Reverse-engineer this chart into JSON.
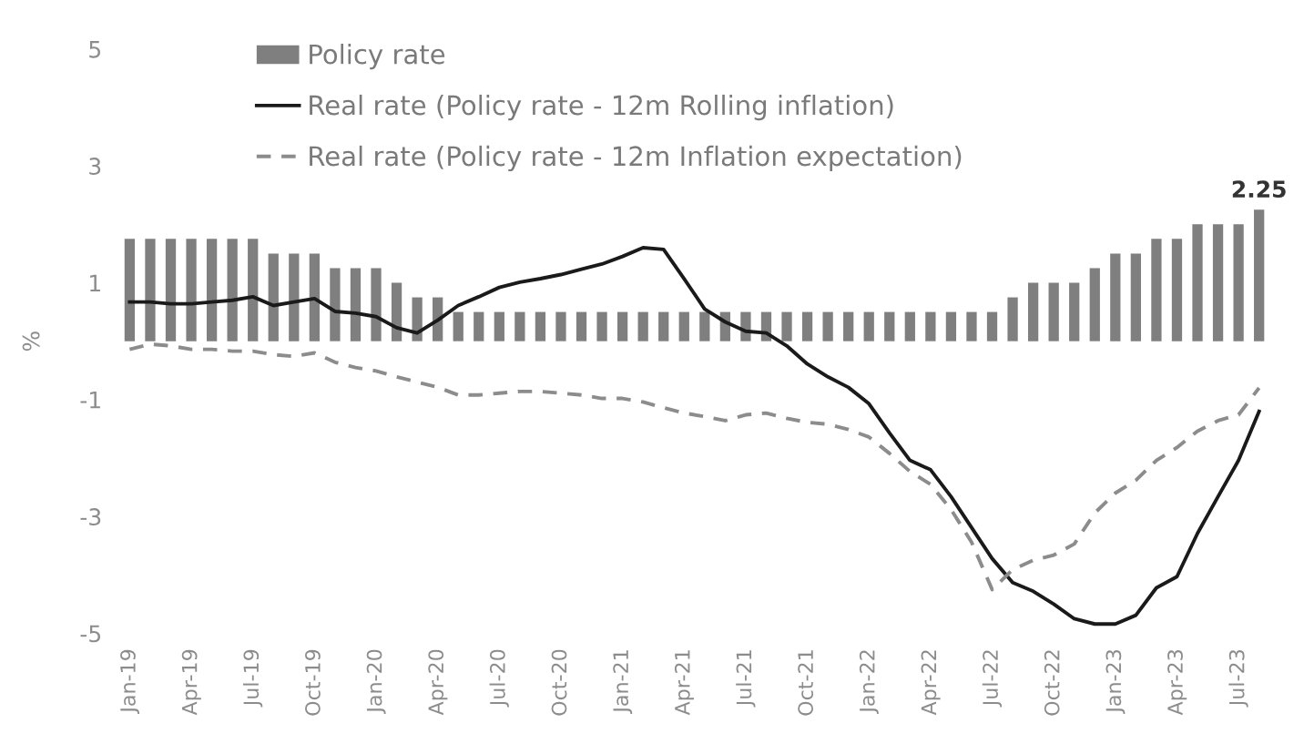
{
  "chart_data": {
    "type": "bar",
    "ylabel": "%",
    "categories": [
      "Jan-19",
      null,
      null,
      "Apr-19",
      null,
      null,
      "Jul-19",
      null,
      null,
      "Oct-19",
      null,
      null,
      "Jan-20",
      null,
      null,
      "Apr-20",
      null,
      null,
      "Jul-20",
      null,
      null,
      "Oct-20",
      null,
      null,
      "Jan-21",
      null,
      null,
      "Apr-21",
      null,
      null,
      "Jul-21",
      null,
      null,
      "Oct-21",
      null,
      null,
      "Jan-22",
      null,
      null,
      "Apr-22",
      null,
      null,
      "Jul-22",
      null,
      null,
      "Oct-22",
      null,
      null,
      "Jan-23",
      null,
      null,
      "Apr-23",
      null,
      null,
      "Jul-23",
      null
    ],
    "series": [
      {
        "name": "Policy rate",
        "color": "#7f7f7f",
        "values": [
          1.75,
          1.75,
          1.75,
          1.75,
          1.75,
          1.75,
          1.75,
          1.5,
          1.5,
          1.5,
          1.25,
          1.25,
          1.25,
          1.0,
          0.75,
          0.75,
          0.5,
          0.5,
          0.5,
          0.5,
          0.5,
          0.5,
          0.5,
          0.5,
          0.5,
          0.5,
          0.5,
          0.5,
          0.5,
          0.5,
          0.5,
          0.5,
          0.5,
          0.5,
          0.5,
          0.5,
          0.5,
          0.5,
          0.5,
          0.5,
          0.5,
          0.5,
          0.5,
          0.75,
          1.0,
          1.0,
          1.0,
          1.25,
          1.5,
          1.5,
          1.75,
          1.75,
          2.0,
          2.0,
          2.0,
          2.25
        ],
        "value_labels": [
          null,
          null,
          null,
          null,
          null,
          null,
          null,
          null,
          null,
          null,
          null,
          null,
          null,
          null,
          null,
          null,
          null,
          null,
          null,
          null,
          null,
          null,
          null,
          null,
          null,
          null,
          null,
          null,
          null,
          null,
          null,
          null,
          null,
          null,
          null,
          null,
          null,
          null,
          null,
          null,
          null,
          null,
          null,
          null,
          null,
          null,
          null,
          null,
          null,
          null,
          null,
          null,
          null,
          null,
          null,
          "2.25"
        ]
      },
      {
        "name": "Real rate (Policy rate - 12m Rolling inflation)",
        "type": "line",
        "color": "#1a1a1a",
        "line_style": "solid",
        "values": [
          0.67,
          0.67,
          0.64,
          0.64,
          0.67,
          0.7,
          0.76,
          0.61,
          0.67,
          0.73,
          0.51,
          0.48,
          0.42,
          0.23,
          0.14,
          0.36,
          0.61,
          0.76,
          0.92,
          1.01,
          1.07,
          1.14,
          1.23,
          1.32,
          1.45,
          1.6,
          1.57,
          1.07,
          0.55,
          0.33,
          0.17,
          0.14,
          -0.08,
          -0.39,
          -0.61,
          -0.79,
          -1.07,
          -1.57,
          -2.04,
          -2.2,
          -2.66,
          -3.19,
          -3.72,
          -4.13,
          -4.28,
          -4.5,
          -4.75,
          -4.84,
          -4.84,
          -4.69,
          -4.22,
          -4.03,
          -3.29,
          -2.66,
          -2.04,
          -1.2
        ]
      },
      {
        "name": "Real rate (Policy rate - 12m Inflation expectation)",
        "type": "line",
        "color": "#8c8c8c",
        "line_style": "dashed",
        "values": [
          -0.14,
          -0.05,
          -0.08,
          -0.14,
          -0.14,
          -0.17,
          -0.17,
          -0.23,
          -0.26,
          -0.2,
          -0.36,
          -0.45,
          -0.51,
          -0.61,
          -0.7,
          -0.79,
          -0.92,
          -0.92,
          -0.89,
          -0.86,
          -0.86,
          -0.89,
          -0.92,
          -0.98,
          -0.98,
          -1.04,
          -1.14,
          -1.23,
          -1.29,
          -1.36,
          -1.26,
          -1.23,
          -1.32,
          -1.39,
          -1.42,
          -1.51,
          -1.64,
          -1.92,
          -2.23,
          -2.45,
          -2.88,
          -3.44,
          -4.25,
          -3.91,
          -3.75,
          -3.66,
          -3.47,
          -2.94,
          -2.6,
          -2.38,
          -2.04,
          -1.82,
          -1.54,
          -1.36,
          -1.26,
          -0.8
        ]
      }
    ],
    "ylim": [
      -5,
      5
    ],
    "yticks": [
      -5,
      -3,
      -1,
      1,
      3,
      5
    ],
    "legend": "top left"
  }
}
